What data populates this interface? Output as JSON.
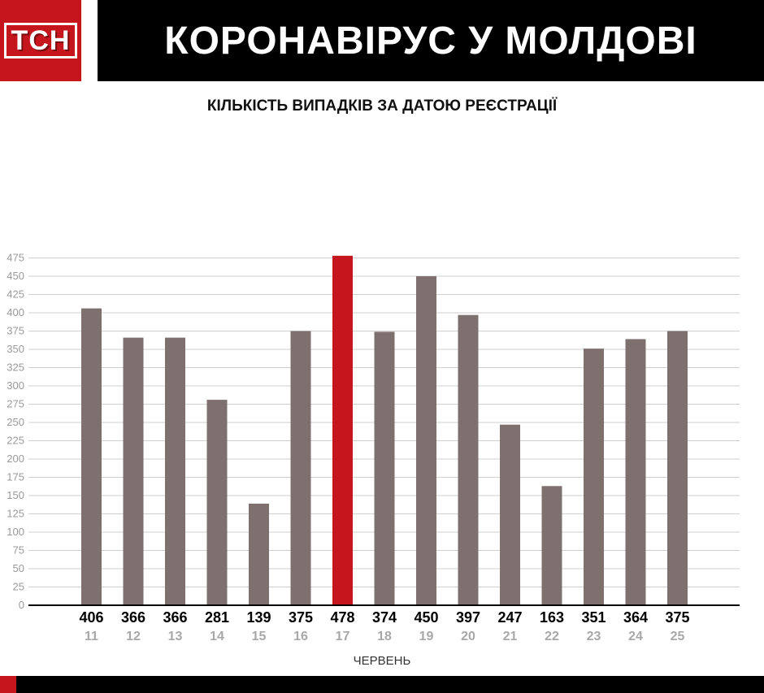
{
  "logo": {
    "text": "ТСН"
  },
  "header": {
    "title": "КОРОНАВІРУС У МОЛДОВІ"
  },
  "colors": {
    "bar": "#7e706f",
    "highlight": "#c4161c",
    "accent": "#c4161c",
    "header_bg": "#000000"
  },
  "chart_data": {
    "type": "bar",
    "title": "КІЛЬКІСТЬ ВИПАДКІВ ЗА ДАТОЮ РЕЄСТРАЦІЇ",
    "xlabel": "ЧЕРВЕНЬ",
    "ylabel": "",
    "ylim": [
      0,
      475
    ],
    "yticks": [
      0,
      25,
      50,
      75,
      100,
      125,
      150,
      175,
      200,
      225,
      250,
      275,
      300,
      325,
      350,
      375,
      400,
      425,
      450,
      475
    ],
    "categories": [
      "11",
      "12",
      "13",
      "14",
      "15",
      "16",
      "17",
      "18",
      "19",
      "20",
      "21",
      "22",
      "23",
      "24",
      "25"
    ],
    "values": [
      406,
      366,
      366,
      281,
      139,
      375,
      478,
      374,
      450,
      397,
      247,
      163,
      351,
      364,
      375
    ],
    "highlight_category": "17",
    "grid": true
  }
}
